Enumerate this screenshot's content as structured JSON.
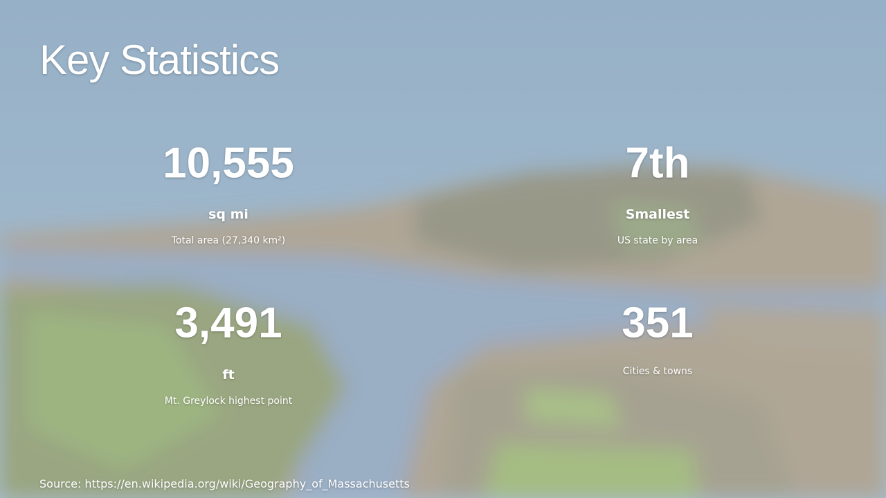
{
  "title": "Key Statistics",
  "stats": [
    {
      "value": "10,555",
      "unit": "sq mi",
      "description": "Total area (27,340 km²)"
    },
    {
      "value": "7th",
      "unit": "Smallest",
      "description": "US state by area"
    },
    {
      "value": "3,491",
      "unit": "ft",
      "description": "Mt. Greylock highest point"
    },
    {
      "value": "351",
      "description": "Cities & towns"
    }
  ],
  "source": "Source: https://en.wikipedia.org/wiki/Geography_of_Massachusetts"
}
